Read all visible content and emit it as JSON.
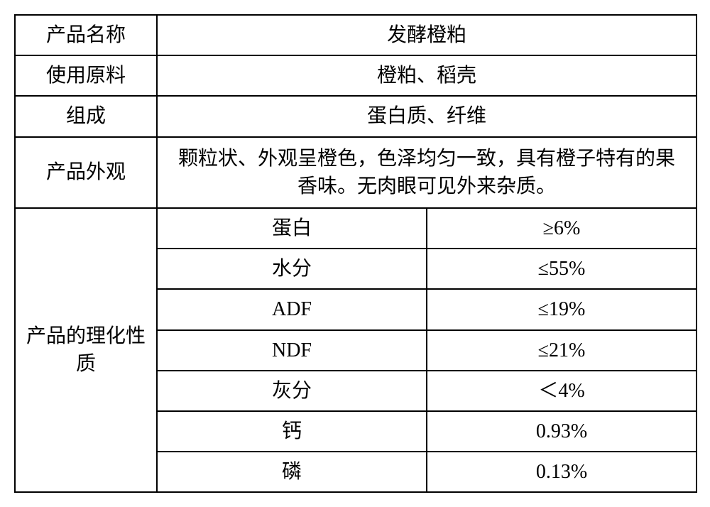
{
  "table": {
    "rows": {
      "product_name": {
        "label": "产品名称",
        "value": "发酵橙粕"
      },
      "raw_materials": {
        "label": "使用原料",
        "value": "橙粕、稻壳"
      },
      "composition": {
        "label": "组成",
        "value": "蛋白质、纤维"
      },
      "appearance": {
        "label": "产品外观",
        "value": "颗粒状、外观呈橙色，色泽均匀一致，具有橙子特有的果香味。无肉眼可见外来杂质。"
      },
      "properties": {
        "label": "产品的理化性质",
        "items": [
          {
            "param": "蛋白",
            "value": "≥6%"
          },
          {
            "param": "水分",
            "value": "≤55%"
          },
          {
            "param": "ADF",
            "value": "≤19%"
          },
          {
            "param": "NDF",
            "value": "≤21%"
          },
          {
            "param": "灰分",
            "value": "＜4%"
          },
          {
            "param": "钙",
            "value": "0.93%"
          },
          {
            "param": "磷",
            "value": "0.13%"
          }
        ]
      }
    }
  },
  "style": {
    "border_color": "#000000",
    "border_width": 2,
    "font_size": 28,
    "text_color": "#000000",
    "background_color": "#ffffff",
    "col_widths": {
      "label": 200,
      "param": 380,
      "value": 380
    }
  }
}
